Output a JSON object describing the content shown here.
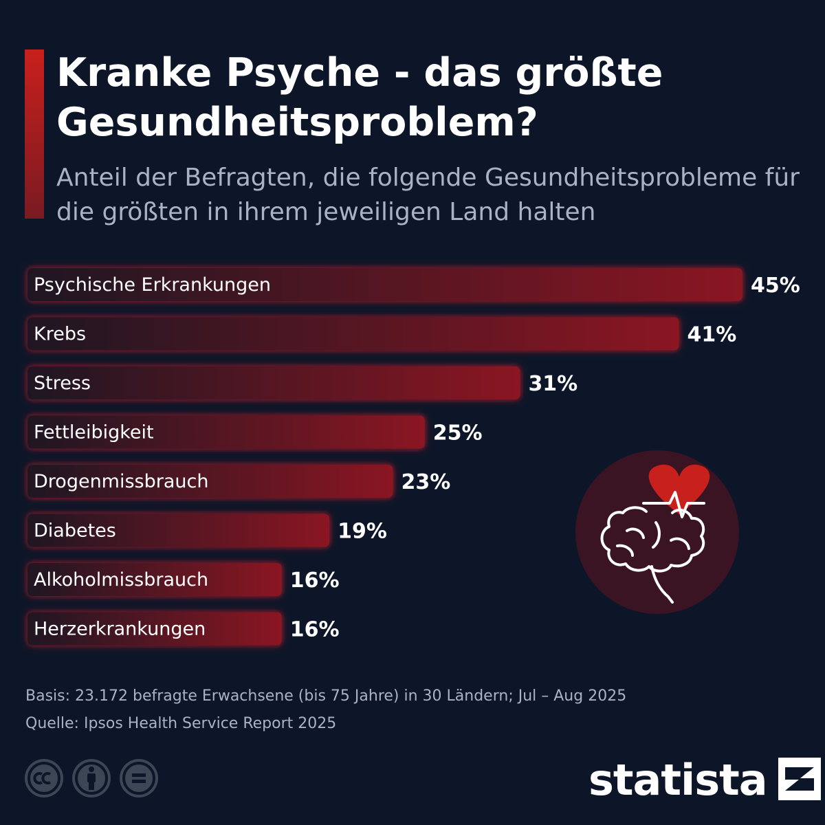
{
  "header": {
    "title": "Kranke Psyche - das größte Gesundheitsproblem?",
    "subtitle": "Anteil der Befragten, die folgende Gesundheitsprobleme für die größten in ihrem jeweiligen Land halten",
    "accent_color": "#c8201c"
  },
  "chart_data": {
    "type": "bar",
    "orientation": "horizontal",
    "categories": [
      "Psychische Erkrankungen",
      "Krebs",
      "Stress",
      "Fettleibigkeit",
      "Drogenmissbrauch",
      "Diabetes",
      "Alkoholmissbrauch",
      "Herzerkrankungen"
    ],
    "values": [
      45,
      41,
      31,
      25,
      23,
      19,
      16,
      16
    ],
    "value_labels": [
      "45%",
      "41%",
      "31%",
      "25%",
      "23%",
      "19%",
      "16%",
      "16%"
    ],
    "unit": "%",
    "xlim": [
      0,
      45
    ],
    "grid": false,
    "bar_color_start": "#1f1524",
    "bar_color_end": "#8a1522",
    "bar_glow_color": "#d11a2a"
  },
  "icons": {
    "illustration": "brain-heart-icon",
    "illustration_bg": "#3a1422",
    "heart_color": "#c8201c"
  },
  "footer": {
    "basis": "Basis: 23.172 befragte Erwachsene (bis 75 Jahre) in 30 Ländern; Jul – Aug 2025",
    "source": "Quelle: Ipsos Health Service Report 2025",
    "license_icons": [
      "cc-icon",
      "attribution-icon",
      "no-derivatives-icon"
    ],
    "brand": "statista",
    "brand_icon": "statista-logo-icon"
  }
}
